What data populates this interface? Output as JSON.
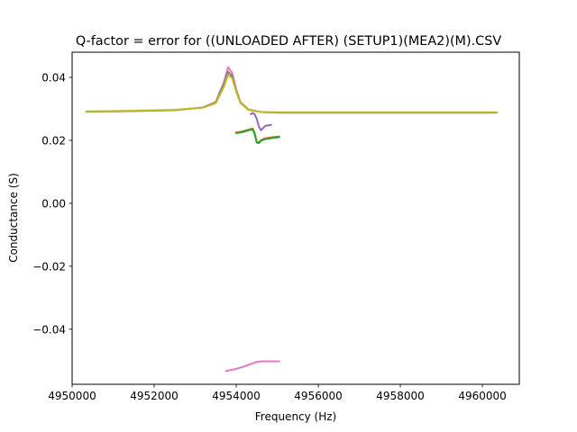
{
  "chart_data": {
    "type": "line",
    "title": "Q-factor = error for ((UNLOADED AFTER) (SETUP1)(MEA2)(M).CSV",
    "xlabel": "Frequency (Hz)",
    "ylabel": "Conductance (S)",
    "xlim": [
      4950000,
      4960900
    ],
    "ylim": [
      -0.0575,
      0.048
    ],
    "x_ticks": [
      4950000,
      4952000,
      4954000,
      4956000,
      4958000,
      4960000
    ],
    "x_tick_labels": [
      "4950000",
      "4952000",
      "4954000",
      "4956000",
      "4958000",
      "4960000"
    ],
    "y_ticks": [
      -0.04,
      -0.02,
      0.0,
      0.02,
      0.04
    ],
    "y_tick_labels": [
      "−0.04",
      "−0.02",
      "0.00",
      "0.02",
      "0.04"
    ],
    "grid": false,
    "legend": "none",
    "series": [
      {
        "color": "#e377c2",
        "x": [
          4950350,
          4951500,
          4952500,
          4953200,
          4953500,
          4953700,
          4953800,
          4953900,
          4954000,
          4954100,
          4954300,
          4954600,
          4955000,
          4956000,
          4958000,
          4960350
        ],
        "y": [
          0.0291,
          0.0293,
          0.0296,
          0.0305,
          0.0322,
          0.0385,
          0.0432,
          0.0415,
          0.0362,
          0.0322,
          0.0298,
          0.029,
          0.0288,
          0.0288,
          0.0288,
          0.0288
        ]
      },
      {
        "color": "#7f7f7f",
        "x": [
          4950350,
          4951500,
          4952500,
          4953200,
          4953500,
          4953700,
          4953800,
          4953900,
          4954000,
          4954100,
          4954300,
          4954600,
          4955000,
          4956000,
          4958000,
          4960350
        ],
        "y": [
          0.0291,
          0.0293,
          0.0296,
          0.0304,
          0.032,
          0.0378,
          0.0418,
          0.0405,
          0.0358,
          0.032,
          0.0297,
          0.029,
          0.0288,
          0.0288,
          0.0288,
          0.0288
        ]
      },
      {
        "color": "#bcbd22",
        "x": [
          4950350,
          4951500,
          4952500,
          4953200,
          4953500,
          4953700,
          4953800,
          4953900,
          4954000,
          4954100,
          4954300,
          4954600,
          4955000,
          4956000,
          4958000,
          4960350
        ],
        "y": [
          0.0292,
          0.0294,
          0.0297,
          0.0304,
          0.0318,
          0.037,
          0.0408,
          0.0398,
          0.0355,
          0.0319,
          0.0297,
          0.029,
          0.0289,
          0.0289,
          0.0289,
          0.0289
        ]
      },
      {
        "color": "#9467bd",
        "x": [
          4954350,
          4954400,
          4954450,
          4954500,
          4954550,
          4954600,
          4954650,
          4954700,
          4954750,
          4954800,
          4954850
        ],
        "y": [
          0.0283,
          0.0287,
          0.0283,
          0.0268,
          0.0245,
          0.0232,
          0.0238,
          0.0245,
          0.0247,
          0.0248,
          0.0249
        ]
      },
      {
        "color": "#d62728",
        "x": [
          4954000,
          4954150,
          4954300,
          4954400,
          4954450,
          4954500,
          4954550,
          4954600,
          4954700,
          4954850,
          4955050
        ],
        "y": [
          0.0225,
          0.0228,
          0.0234,
          0.0237,
          0.0222,
          0.0195,
          0.0193,
          0.02,
          0.0206,
          0.0209,
          0.0212
        ]
      },
      {
        "color": "#ff7f0e",
        "x": [
          4954000,
          4954150,
          4954300,
          4954400,
          4954450,
          4954500,
          4954550,
          4954600,
          4954700,
          4954850,
          4955050
        ],
        "y": [
          0.0224,
          0.0227,
          0.0233,
          0.0236,
          0.0221,
          0.0194,
          0.0192,
          0.0199,
          0.0205,
          0.0208,
          0.0211
        ]
      },
      {
        "color": "#2ca02c",
        "x": [
          4954000,
          4954150,
          4954300,
          4954400,
          4954450,
          4954500,
          4954550,
          4954600,
          4954700,
          4954850,
          4955050
        ],
        "y": [
          0.0223,
          0.0226,
          0.0232,
          0.0235,
          0.022,
          0.0193,
          0.0191,
          0.0198,
          0.0204,
          0.0207,
          0.021
        ]
      },
      {
        "color": "#e377c2",
        "x": [
          4953750,
          4953900,
          4954050,
          4954200,
          4954350,
          4954500,
          4954600,
          4954750,
          4955050
        ],
        "y": [
          -0.0533,
          -0.0529,
          -0.0524,
          -0.0518,
          -0.0511,
          -0.0504,
          -0.0502,
          -0.0502,
          -0.0502
        ]
      }
    ]
  }
}
